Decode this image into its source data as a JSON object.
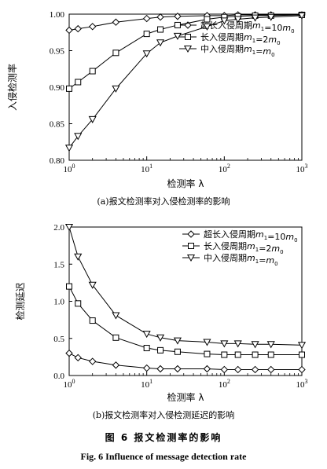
{
  "chart_data": [
    {
      "type": "line",
      "xscale": "log",
      "xlim": [
        1,
        1000
      ],
      "ylim": [
        0.8,
        1.0
      ],
      "xticks": [
        1,
        10,
        100,
        1000
      ],
      "xtick_labels": [
        "10^0",
        "10^1",
        "10^2",
        "10^3"
      ],
      "yticks": [
        0.8,
        0.85,
        0.9,
        0.95,
        1.0
      ],
      "ytick_labels": [
        "0.80",
        "0.85",
        "0.90",
        "0.95",
        "1.00"
      ],
      "xlabel": "检测率 λ",
      "ylabel": "入侵检测率",
      "caption": "(a)报文检测率对入侵检测率的影响",
      "legend": "top-right-inside",
      "series": [
        {
          "name": "超长入侵周期m1=10m0",
          "marker": "diamond",
          "x": [
            1,
            1.3,
            2,
            4,
            10,
            15,
            25,
            60,
            100,
            150,
            250,
            400,
            1000
          ],
          "y": [
            0.978,
            0.98,
            0.983,
            0.989,
            0.994,
            0.996,
            0.997,
            0.998,
            0.998,
            0.999,
            0.999,
            0.999,
            0.999
          ]
        },
        {
          "name": "长入侵周期m1=2m0",
          "marker": "square",
          "x": [
            1,
            1.3,
            2,
            4,
            10,
            15,
            25,
            60,
            100,
            150,
            250,
            400,
            1000
          ],
          "y": [
            0.898,
            0.907,
            0.922,
            0.947,
            0.973,
            0.979,
            0.985,
            0.993,
            0.996,
            0.997,
            0.998,
            0.998,
            0.999
          ]
        },
        {
          "name": "中入侵周期m1=m0",
          "marker": "triangle-down",
          "x": [
            1,
            1.3,
            2,
            4,
            10,
            15,
            25,
            60,
            100,
            150,
            250,
            400,
            1000
          ],
          "y": [
            0.817,
            0.833,
            0.856,
            0.898,
            0.946,
            0.961,
            0.97,
            0.983,
            0.991,
            0.993,
            0.995,
            0.996,
            0.998
          ]
        }
      ]
    },
    {
      "type": "line",
      "xscale": "log",
      "xlim": [
        1,
        1000
      ],
      "ylim": [
        0.0,
        2.0
      ],
      "xticks": [
        1,
        10,
        100,
        1000
      ],
      "xtick_labels": [
        "10^0",
        "10^1",
        "10^2",
        "10^3"
      ],
      "yticks": [
        0.0,
        0.5,
        1.0,
        1.5,
        2.0
      ],
      "ytick_labels": [
        "0.0",
        "0.5",
        "1.0",
        "1.5",
        "2.0"
      ],
      "xlabel": "检测率 λ",
      "ylabel": "检测延迟",
      "caption": "(b)报文检测率对入侵检测延迟的影响",
      "legend": "top-right-inside",
      "series": [
        {
          "name": "超长入侵周期m1=10m0",
          "marker": "diamond",
          "x": [
            1,
            1.3,
            2,
            4,
            10,
            15,
            25,
            60,
            100,
            150,
            250,
            400,
            1000
          ],
          "y": [
            0.3,
            0.24,
            0.19,
            0.14,
            0.1,
            0.09,
            0.09,
            0.09,
            0.08,
            0.08,
            0.08,
            0.08,
            0.08
          ]
        },
        {
          "name": "长入侵周期m1=2m0",
          "marker": "square",
          "x": [
            1,
            1.3,
            2,
            4,
            10,
            15,
            25,
            60,
            100,
            150,
            250,
            400,
            1000
          ],
          "y": [
            1.2,
            0.97,
            0.74,
            0.51,
            0.37,
            0.34,
            0.32,
            0.29,
            0.28,
            0.28,
            0.28,
            0.28,
            0.28
          ]
        },
        {
          "name": "中入侵周期m1=m0",
          "marker": "triangle-down",
          "x": [
            1,
            1.3,
            2,
            4,
            10,
            15,
            25,
            60,
            100,
            150,
            250,
            400,
            1000
          ],
          "y": [
            2.0,
            1.6,
            1.22,
            0.81,
            0.56,
            0.51,
            0.47,
            0.45,
            0.43,
            0.43,
            0.42,
            0.42,
            0.41
          ]
        }
      ]
    }
  ],
  "figure": {
    "title_cn": "图 6   报文检测率的影响",
    "title_en": "Fig. 6   Influence of message detection rate"
  }
}
